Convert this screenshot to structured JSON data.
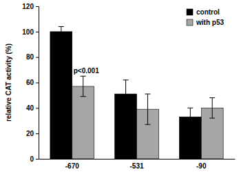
{
  "chart_data": {
    "type": "bar",
    "y_label": "relative CAT activity (%)",
    "categories": [
      "-670",
      "-531",
      "-90"
    ],
    "series": [
      {
        "name": "control",
        "color": "#000000",
        "values": [
          100,
          51,
          33
        ],
        "errors": [
          4,
          11,
          7
        ]
      },
      {
        "name": "with p53",
        "color": "#a6a6a6",
        "values": [
          57,
          39,
          40
        ],
        "errors": [
          8,
          12,
          8
        ]
      }
    ],
    "annotations": [
      "p<0.001"
    ],
    "ylim": [
      0,
      120
    ],
    "yticks": [
      0,
      20,
      40,
      60,
      80,
      100,
      120
    ],
    "grid": false,
    "legend": "upper right"
  }
}
